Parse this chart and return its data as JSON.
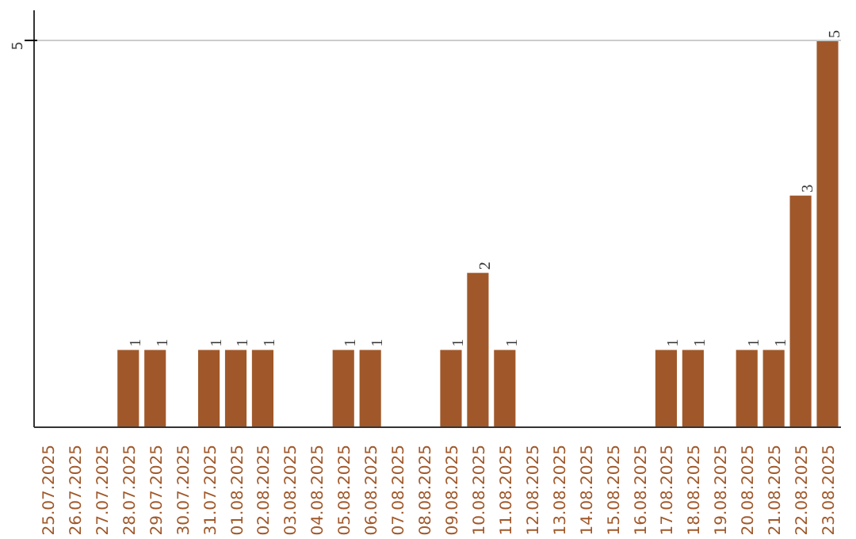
{
  "chart_data": {
    "type": "bar",
    "categories": [
      "25.07.2025",
      "26.07.2025",
      "27.07.2025",
      "28.07.2025",
      "29.07.2025",
      "30.07.2025",
      "31.07.2025",
      "01.08.2025",
      "02.08.2025",
      "03.08.2025",
      "04.08.2025",
      "05.08.2025",
      "06.08.2025",
      "07.08.2025",
      "08.08.2025",
      "09.08.2025",
      "10.08.2025",
      "11.08.2025",
      "12.08.2025",
      "13.08.2025",
      "14.08.2025",
      "15.08.2025",
      "16.08.2025",
      "17.08.2025",
      "18.08.2025",
      "19.08.2025",
      "20.08.2025",
      "21.08.2025",
      "22.08.2025",
      "23.08.2025"
    ],
    "values": [
      0,
      0,
      0,
      1,
      1,
      0,
      1,
      1,
      1,
      0,
      0,
      1,
      1,
      0,
      0,
      1,
      2,
      1,
      0,
      0,
      0,
      0,
      0,
      1,
      1,
      0,
      1,
      1,
      3,
      5
    ],
    "value_labels": [
      null,
      null,
      null,
      "1",
      "1",
      null,
      "1",
      "1",
      "1",
      null,
      null,
      "1",
      "1",
      null,
      null,
      "1",
      "2",
      "1",
      null,
      null,
      null,
      null,
      null,
      "1",
      "1",
      null,
      "1",
      "1",
      "3",
      "5"
    ],
    "color": "#a0582a",
    "ylim": [
      0,
      5.4
    ],
    "yticks": [
      5
    ],
    "grid": "y"
  }
}
